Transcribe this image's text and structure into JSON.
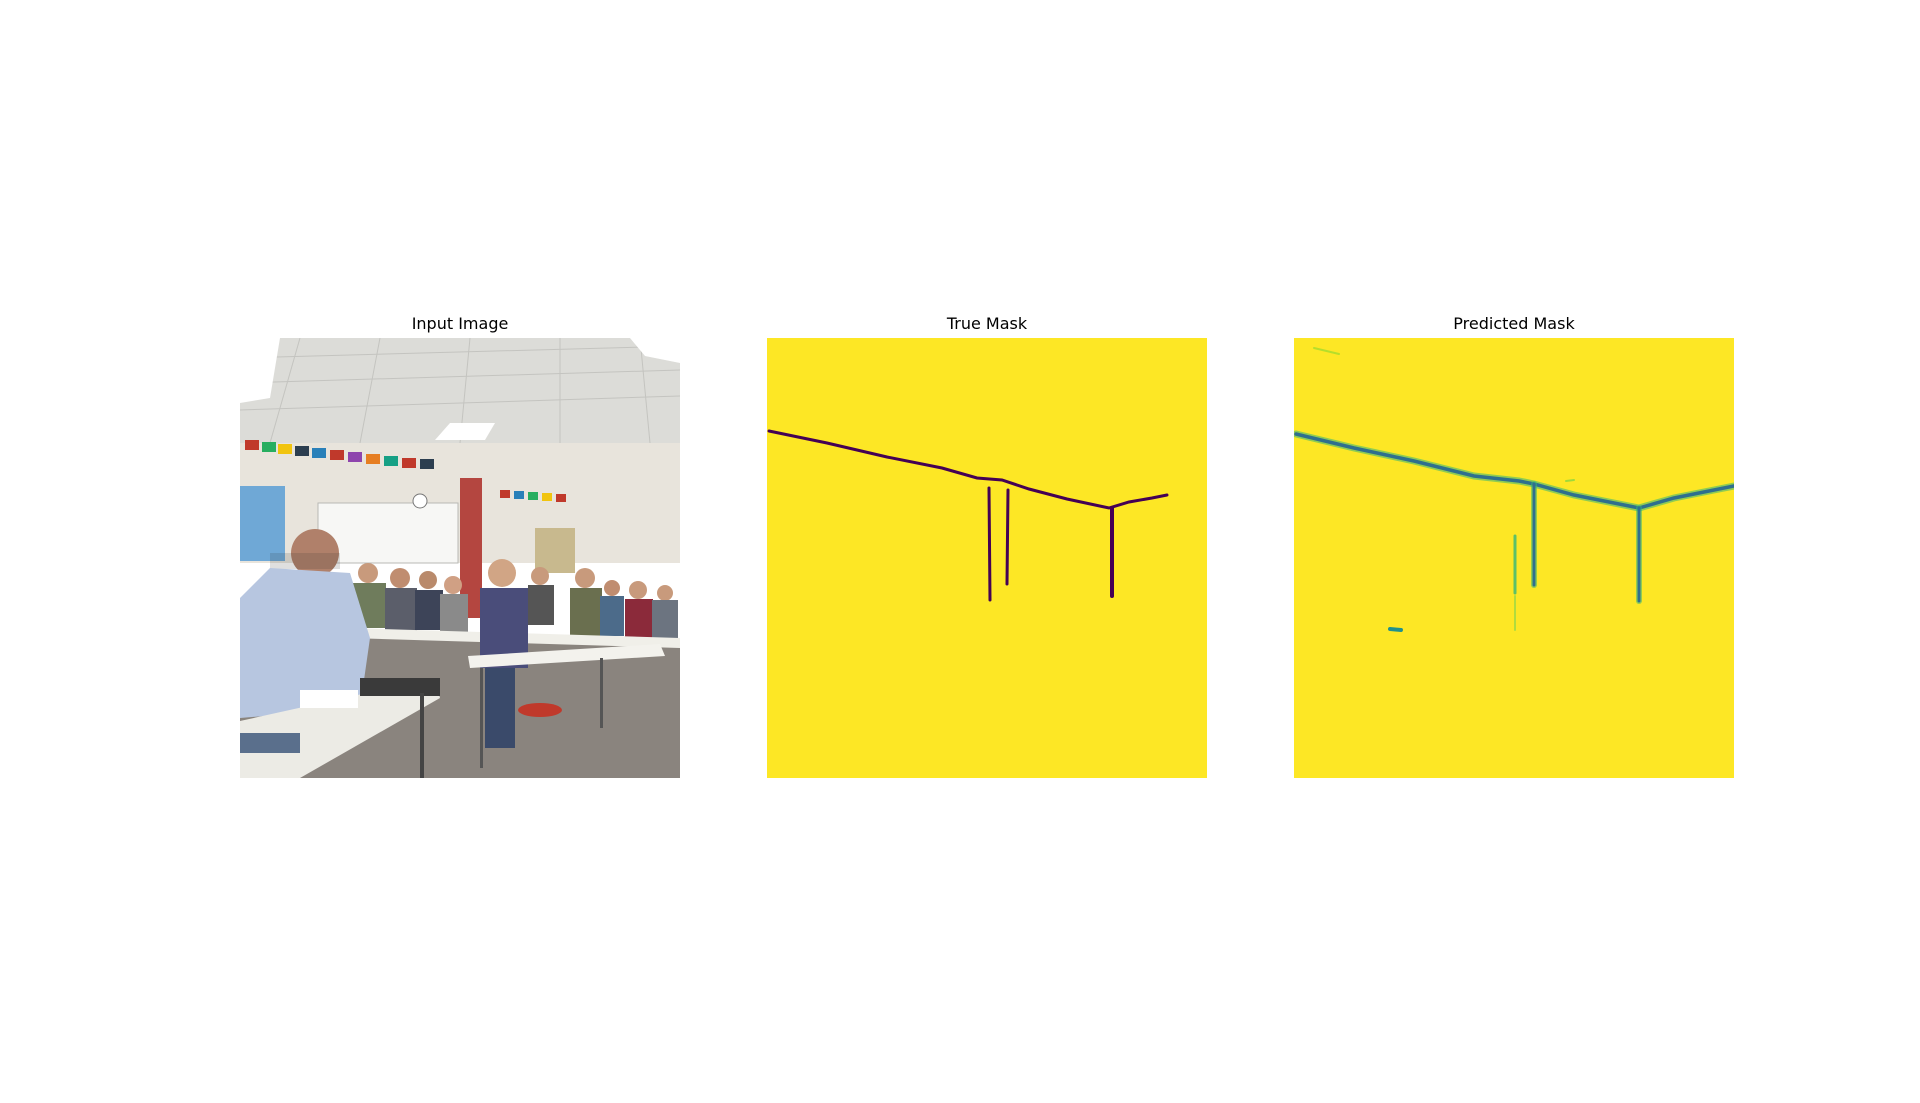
{
  "figure": {
    "panels": [
      {
        "title": "Input Image"
      },
      {
        "title": "True Mask"
      },
      {
        "title": "Predicted Mask"
      }
    ]
  },
  "colors": {
    "mask_background": "#fde725",
    "true_mask_line": "#440154",
    "predicted_mask_line": "#2f6f8e",
    "predicted_mask_glow": "#35b779"
  }
}
